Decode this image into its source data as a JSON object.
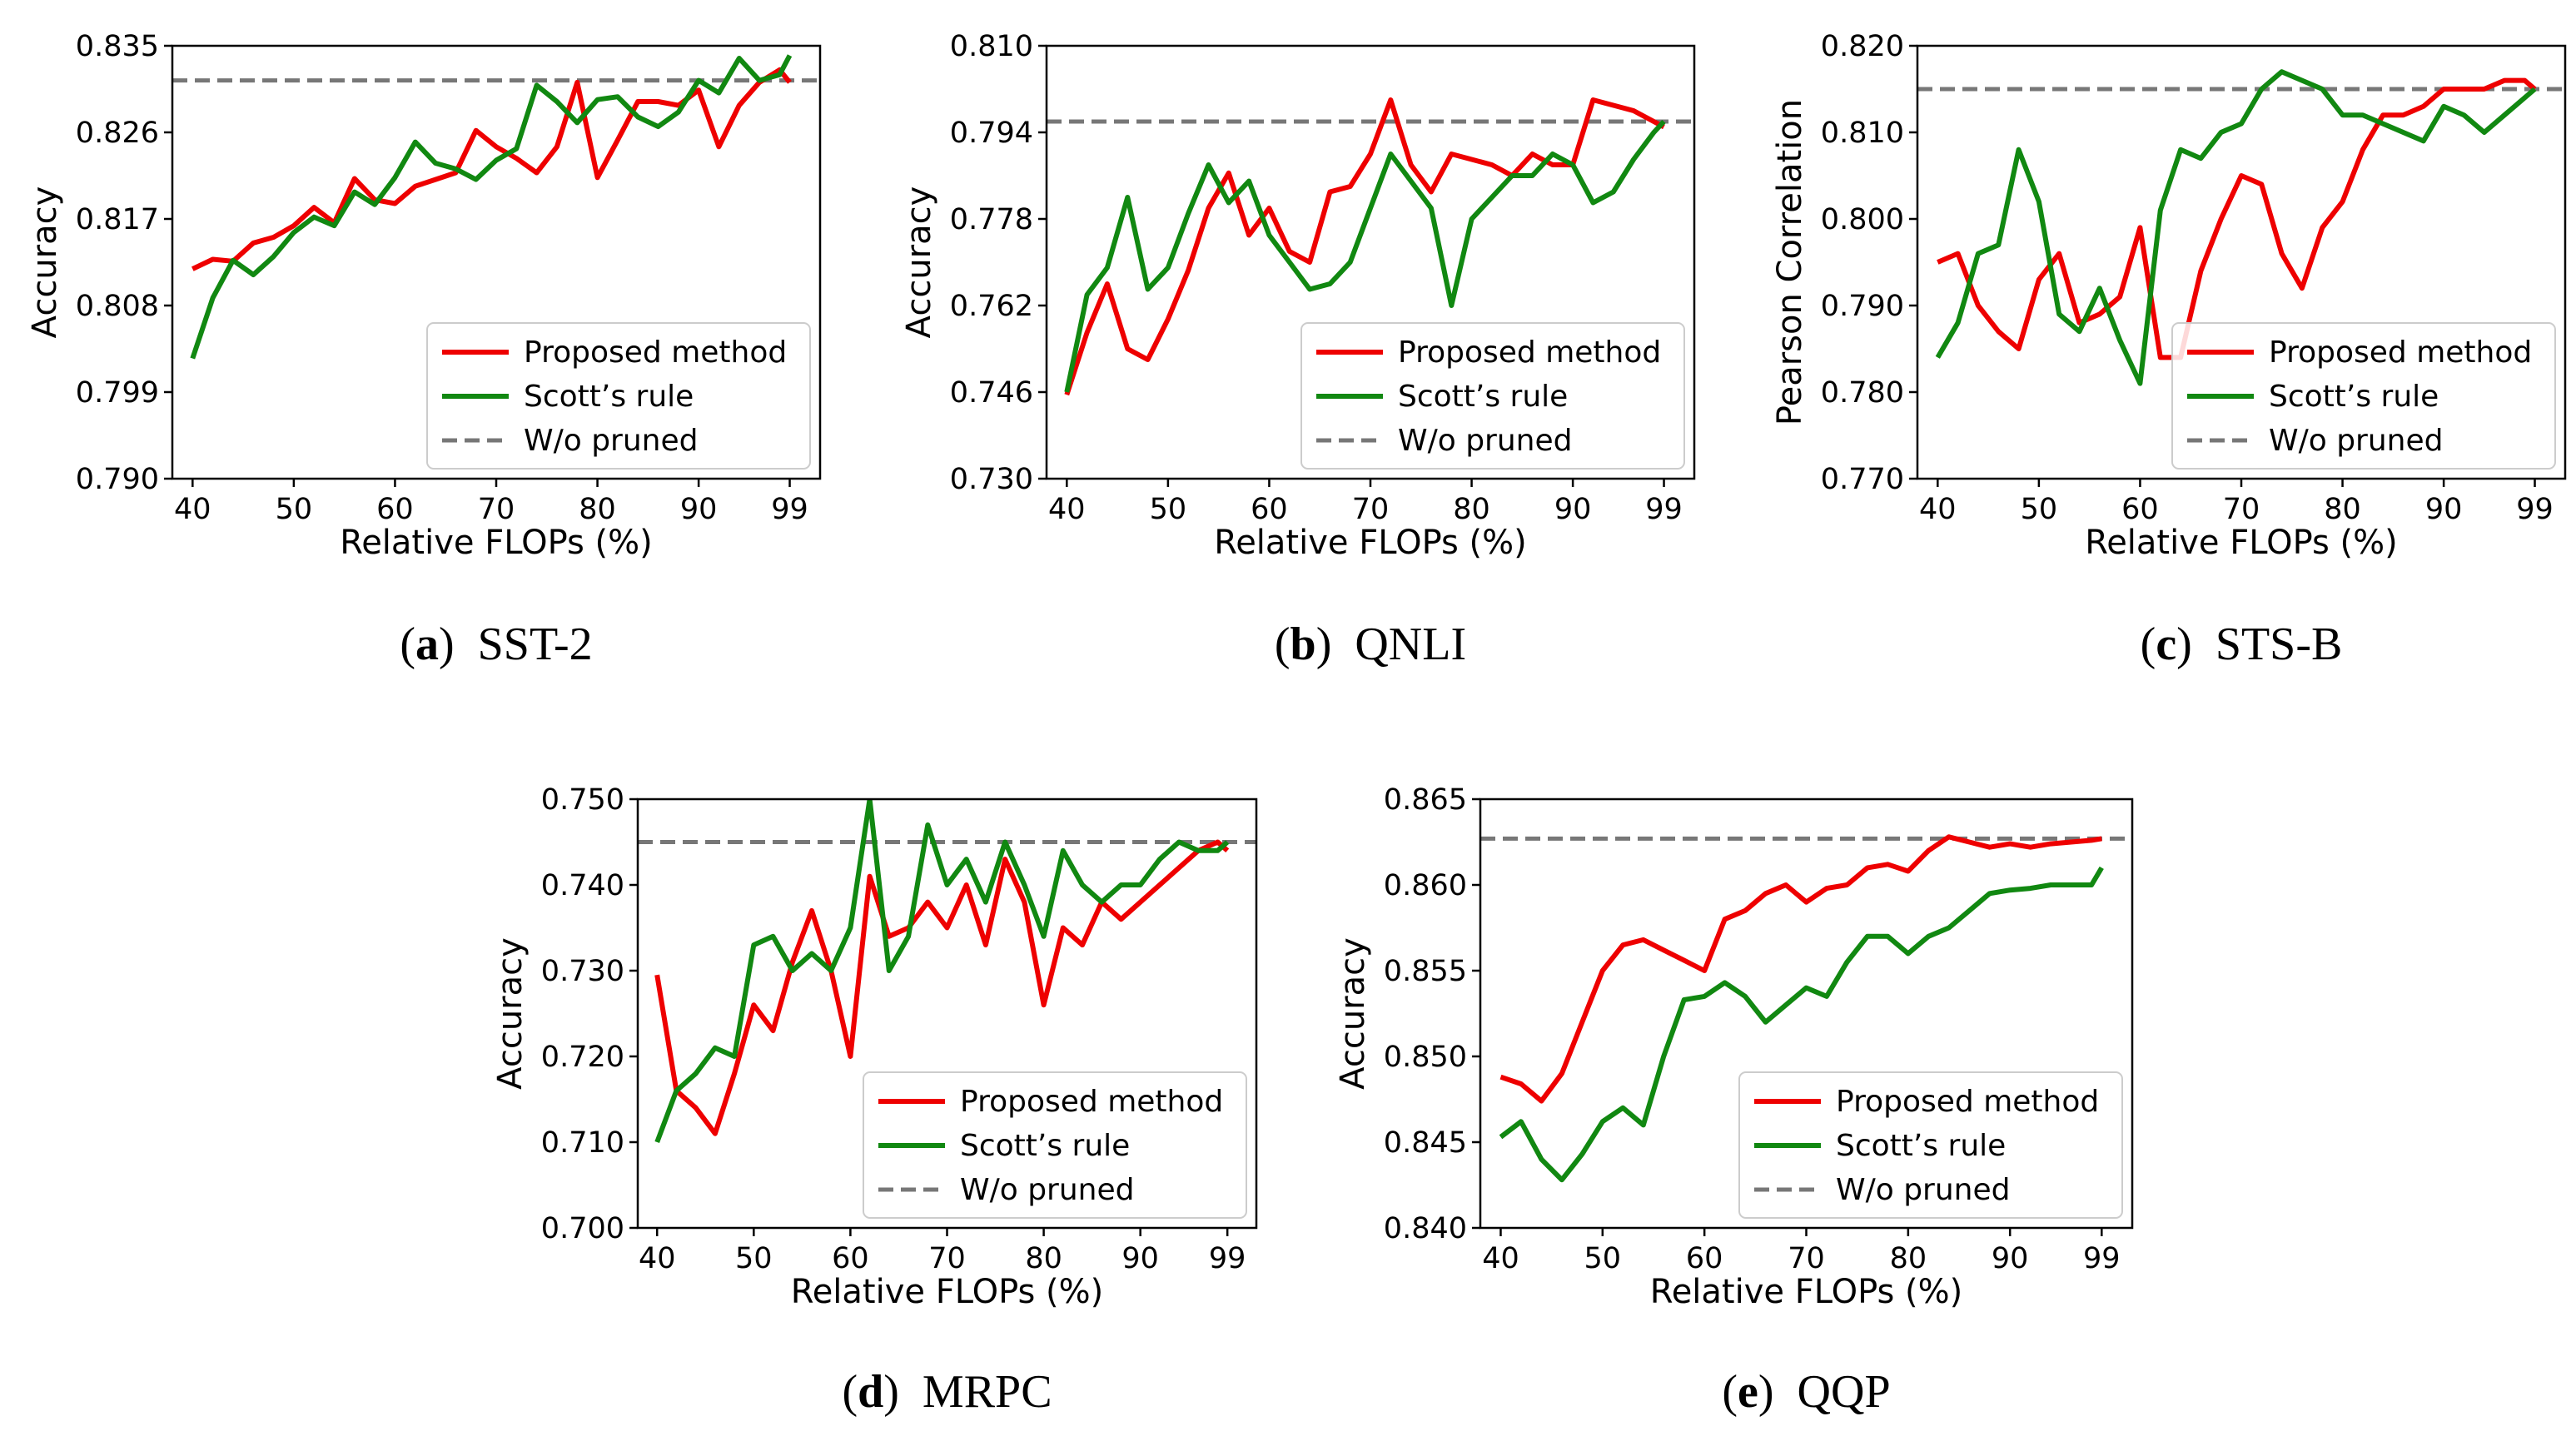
{
  "colors": {
    "proposed": "#ee0000",
    "scott": "#118811",
    "baseline": "#777777"
  },
  "chart_data": [
    {
      "type": "line",
      "title": "",
      "caption": {
        "letter": "a",
        "name": "SST-2"
      },
      "xlabel": "Relative FLOPs (%)",
      "ylabel": "Accuracy",
      "xticks": [
        "40",
        "50",
        "60",
        "70",
        "80",
        "90",
        "99"
      ],
      "yticks": [
        "0.790",
        "0.799",
        "0.808",
        "0.817",
        "0.826",
        "0.835"
      ],
      "xlim": [
        38,
        102
      ],
      "ylim": [
        0.79,
        0.835
      ],
      "legend": {
        "position": "lower right",
        "entries": [
          "Proposed method",
          "Scott’s rule",
          "W/o pruned"
        ]
      },
      "baseline": {
        "name": "W/o pruned",
        "value": 0.8314
      },
      "series": [
        {
          "name": "Proposed method",
          "x": [
            40,
            42,
            44,
            46,
            48,
            50,
            52,
            54,
            56,
            58,
            60,
            62,
            64,
            66,
            68,
            70,
            72,
            74,
            76,
            78,
            80,
            82,
            84,
            86,
            88,
            90,
            92,
            94,
            96,
            98,
            99
          ],
          "y": [
            0.8118,
            0.8128,
            0.8126,
            0.8145,
            0.8151,
            0.8163,
            0.8182,
            0.8166,
            0.8212,
            0.819,
            0.8186,
            0.8204,
            0.8211,
            0.8218,
            0.8262,
            0.8245,
            0.8233,
            0.8218,
            0.8245,
            0.8312,
            0.8213,
            0.8252,
            0.8292,
            0.8292,
            0.8288,
            0.8304,
            0.8245,
            0.8288,
            0.8312,
            0.8325,
            0.8312
          ]
        },
        {
          "name": "Scott’s rule",
          "x": [
            40,
            42,
            44,
            46,
            48,
            50,
            52,
            54,
            56,
            58,
            60,
            62,
            64,
            66,
            68,
            70,
            72,
            74,
            76,
            78,
            80,
            82,
            84,
            86,
            88,
            90,
            92,
            94,
            96,
            98,
            99
          ],
          "y": [
            0.8025,
            0.8088,
            0.8127,
            0.8112,
            0.8131,
            0.8156,
            0.8172,
            0.8163,
            0.8198,
            0.8185,
            0.8213,
            0.825,
            0.8228,
            0.8222,
            0.8211,
            0.8231,
            0.8243,
            0.8309,
            0.8292,
            0.827,
            0.8294,
            0.8297,
            0.8276,
            0.8266,
            0.8281,
            0.8314,
            0.8301,
            0.8337,
            0.8314,
            0.832,
            0.834
          ]
        }
      ]
    },
    {
      "type": "line",
      "title": "",
      "caption": {
        "letter": "b",
        "name": "QNLI"
      },
      "xlabel": "Relative FLOPs (%)",
      "ylabel": "Accuracy",
      "xticks": [
        "40",
        "50",
        "60",
        "70",
        "80",
        "90",
        "99"
      ],
      "yticks": [
        "0.730",
        "0.746",
        "0.762",
        "0.778",
        "0.794",
        "0.810"
      ],
      "xlim": [
        38,
        102
      ],
      "ylim": [
        0.73,
        0.81
      ],
      "legend": {
        "position": "lower right",
        "entries": [
          "Proposed method",
          "Scott’s rule",
          "W/o pruned"
        ]
      },
      "baseline": {
        "name": "W/o pruned",
        "value": 0.796
      },
      "series": [
        {
          "name": "Proposed method",
          "x": [
            40,
            42,
            44,
            46,
            48,
            50,
            52,
            54,
            56,
            58,
            60,
            62,
            64,
            66,
            68,
            70,
            72,
            74,
            76,
            78,
            80,
            82,
            84,
            86,
            88,
            90,
            92,
            94,
            96,
            98,
            99
          ],
          "y": [
            0.7455,
            0.757,
            0.766,
            0.754,
            0.752,
            0.7595,
            0.7685,
            0.78,
            0.7865,
            0.775,
            0.78,
            0.772,
            0.77,
            0.783,
            0.784,
            0.79,
            0.8,
            0.788,
            0.783,
            0.79,
            0.789,
            0.788,
            0.786,
            0.79,
            0.788,
            0.788,
            0.8,
            0.799,
            0.798,
            0.796,
            0.795
          ]
        },
        {
          "name": "Scott’s rule",
          "x": [
            40,
            42,
            44,
            46,
            48,
            50,
            52,
            54,
            56,
            58,
            60,
            62,
            64,
            66,
            68,
            70,
            72,
            74,
            76,
            78,
            80,
            82,
            84,
            86,
            88,
            90,
            92,
            94,
            96,
            98,
            99
          ],
          "y": [
            0.746,
            0.764,
            0.769,
            0.782,
            0.765,
            0.769,
            0.779,
            0.788,
            0.781,
            0.785,
            0.775,
            0.77,
            0.765,
            0.766,
            0.77,
            0.78,
            0.79,
            0.785,
            0.78,
            0.762,
            0.778,
            0.782,
            0.786,
            0.786,
            0.79,
            0.788,
            0.781,
            0.783,
            0.789,
            0.794,
            0.796
          ]
        }
      ]
    },
    {
      "type": "line",
      "title": "",
      "caption": {
        "letter": "c",
        "name": "STS-B"
      },
      "xlabel": "Relative FLOPs (%)",
      "ylabel": "Pearson Correlation",
      "xticks": [
        "40",
        "50",
        "60",
        "70",
        "80",
        "90",
        "99"
      ],
      "yticks": [
        "0.770",
        "0.780",
        "0.790",
        "0.800",
        "0.810",
        "0.820"
      ],
      "xlim": [
        38,
        102
      ],
      "ylim": [
        0.77,
        0.82
      ],
      "legend": {
        "position": "lower right",
        "entries": [
          "Proposed method",
          "Scott’s rule",
          "W/o pruned"
        ]
      },
      "baseline": {
        "name": "W/o pruned",
        "value": 0.815
      },
      "series": [
        {
          "name": "Proposed method",
          "x": [
            40,
            42,
            44,
            46,
            48,
            50,
            52,
            54,
            56,
            58,
            60,
            62,
            64,
            66,
            68,
            70,
            72,
            74,
            76,
            78,
            80,
            82,
            84,
            86,
            88,
            90,
            92,
            94,
            96,
            98,
            99
          ],
          "y": [
            0.795,
            0.796,
            0.79,
            0.787,
            0.785,
            0.793,
            0.796,
            0.788,
            0.789,
            0.791,
            0.799,
            0.784,
            0.784,
            0.794,
            0.8,
            0.805,
            0.804,
            0.796,
            0.792,
            0.799,
            0.802,
            0.808,
            0.812,
            0.812,
            0.813,
            0.815,
            0.815,
            0.815,
            0.816,
            0.816,
            0.815
          ]
        },
        {
          "name": "Scott’s rule",
          "x": [
            40,
            42,
            44,
            46,
            48,
            50,
            52,
            54,
            56,
            58,
            60,
            62,
            64,
            66,
            68,
            70,
            72,
            74,
            76,
            78,
            80,
            82,
            84,
            86,
            88,
            90,
            92,
            94,
            96,
            98,
            99
          ],
          "y": [
            0.784,
            0.788,
            0.796,
            0.797,
            0.808,
            0.802,
            0.789,
            0.787,
            0.792,
            0.786,
            0.781,
            0.801,
            0.808,
            0.807,
            0.81,
            0.811,
            0.815,
            0.817,
            0.816,
            0.815,
            0.812,
            0.812,
            0.811,
            0.81,
            0.809,
            0.813,
            0.812,
            0.81,
            0.812,
            0.814,
            0.815
          ]
        }
      ]
    },
    {
      "type": "line",
      "title": "",
      "caption": {
        "letter": "d",
        "name": "MRPC"
      },
      "xlabel": "Relative FLOPs (%)",
      "ylabel": "Accuracy",
      "xticks": [
        "40",
        "50",
        "60",
        "70",
        "80",
        "90",
        "99"
      ],
      "yticks": [
        "0.700",
        "0.710",
        "0.720",
        "0.730",
        "0.740",
        "0.750"
      ],
      "xlim": [
        38,
        102
      ],
      "ylim": [
        0.7,
        0.75
      ],
      "legend": {
        "position": "lower right",
        "entries": [
          "Proposed method",
          "Scott’s rule",
          "W/o pruned"
        ]
      },
      "baseline": {
        "name": "W/o pruned",
        "value": 0.745
      },
      "series": [
        {
          "name": "Proposed method",
          "x": [
            40,
            42,
            44,
            46,
            48,
            50,
            52,
            54,
            56,
            58,
            60,
            62,
            64,
            66,
            68,
            70,
            72,
            74,
            76,
            78,
            80,
            82,
            84,
            86,
            88,
            90,
            92,
            94,
            96,
            98,
            99
          ],
          "y": [
            0.7295,
            0.716,
            0.714,
            0.711,
            0.718,
            0.726,
            0.723,
            0.731,
            0.737,
            0.73,
            0.72,
            0.741,
            0.734,
            0.735,
            0.738,
            0.735,
            0.74,
            0.733,
            0.743,
            0.738,
            0.726,
            0.735,
            0.733,
            0.738,
            0.736,
            0.738,
            0.74,
            0.742,
            0.744,
            0.745,
            0.744
          ]
        },
        {
          "name": "Scott’s rule",
          "x": [
            40,
            42,
            44,
            46,
            48,
            50,
            52,
            54,
            56,
            58,
            60,
            62,
            64,
            66,
            68,
            70,
            72,
            74,
            76,
            78,
            80,
            82,
            84,
            86,
            88,
            90,
            92,
            94,
            96,
            98,
            99
          ],
          "y": [
            0.71,
            0.716,
            0.718,
            0.721,
            0.72,
            0.733,
            0.734,
            0.73,
            0.732,
            0.73,
            0.735,
            0.75,
            0.73,
            0.734,
            0.747,
            0.74,
            0.743,
            0.738,
            0.745,
            0.74,
            0.734,
            0.744,
            0.74,
            0.738,
            0.74,
            0.74,
            0.743,
            0.745,
            0.744,
            0.744,
            0.745
          ]
        }
      ]
    },
    {
      "type": "line",
      "title": "",
      "caption": {
        "letter": "e",
        "name": "QQP"
      },
      "xlabel": "Relative FLOPs (%)",
      "ylabel": "Accuracy",
      "xticks": [
        "40",
        "50",
        "60",
        "70",
        "80",
        "90",
        "99"
      ],
      "yticks": [
        "0.840",
        "0.845",
        "0.850",
        "0.855",
        "0.860",
        "0.865"
      ],
      "xlim": [
        38,
        102
      ],
      "ylim": [
        0.84,
        0.865
      ],
      "legend": {
        "position": "lower right",
        "entries": [
          "Proposed method",
          "Scott’s rule",
          "W/o pruned"
        ]
      },
      "baseline": {
        "name": "W/o pruned",
        "value": 0.8627
      },
      "series": [
        {
          "name": "Proposed method",
          "x": [
            40,
            42,
            44,
            46,
            48,
            50,
            52,
            54,
            56,
            58,
            60,
            62,
            64,
            66,
            68,
            70,
            72,
            74,
            76,
            78,
            80,
            82,
            84,
            86,
            88,
            90,
            92,
            94,
            96,
            98,
            99
          ],
          "y": [
            0.8488,
            0.8484,
            0.8474,
            0.849,
            0.852,
            0.855,
            0.8565,
            0.8568,
            0.8562,
            0.8556,
            0.855,
            0.858,
            0.8585,
            0.8595,
            0.86,
            0.859,
            0.8598,
            0.86,
            0.861,
            0.8612,
            0.8608,
            0.862,
            0.8628,
            0.8625,
            0.8622,
            0.8624,
            0.8622,
            0.8624,
            0.8625,
            0.8626,
            0.8627
          ]
        },
        {
          "name": "Scott’s rule",
          "x": [
            40,
            42,
            44,
            46,
            48,
            50,
            52,
            54,
            56,
            58,
            60,
            62,
            64,
            66,
            68,
            70,
            72,
            74,
            76,
            78,
            80,
            82,
            84,
            86,
            88,
            90,
            92,
            94,
            96,
            98,
            99
          ],
          "y": [
            0.8453,
            0.8462,
            0.844,
            0.8428,
            0.8443,
            0.8462,
            0.847,
            0.846,
            0.85,
            0.8533,
            0.8535,
            0.8543,
            0.8535,
            0.852,
            0.853,
            0.854,
            0.8535,
            0.8555,
            0.857,
            0.857,
            0.856,
            0.857,
            0.8575,
            0.8585,
            0.8595,
            0.8597,
            0.8598,
            0.86,
            0.86,
            0.86,
            0.861
          ]
        }
      ]
    }
  ]
}
